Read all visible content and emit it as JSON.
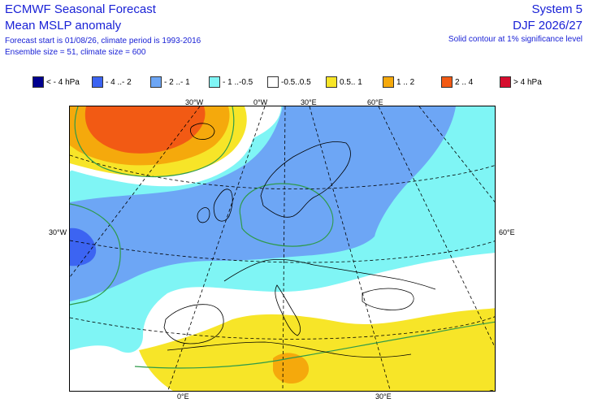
{
  "header": {
    "title": "ECMWF Seasonal Forecast",
    "subtitle": "Mean MSLP anomaly",
    "meta_line1": "Forecast start is 01/08/26, climate period is 1993-2016",
    "meta_line2": "Ensemble size = 51, climate size = 600",
    "system": "System 5",
    "season": "DJF 2026/27",
    "significance": "Solid contour at 1% significance level"
  },
  "legend": [
    {
      "label": "< - 4 hPa",
      "color": "#00008f"
    },
    {
      "label": "- 4 ..- 2",
      "color": "#3c64f2"
    },
    {
      "label": "- 2 ..- 1",
      "color": "#6da6f5"
    },
    {
      "label": "- 1 ..-0.5",
      "color": "#7ff5f5"
    },
    {
      "label": "-0.5..0.5",
      "color": "#ffffff"
    },
    {
      "label": "0.5.. 1",
      "color": "#f7e528"
    },
    {
      "label": "1 .. 2",
      "color": "#f5a90c"
    },
    {
      "label": "2 .. 4",
      "color": "#f25a14"
    },
    {
      "label": "> 4 hPa",
      "color": "#d60d2e"
    }
  ],
  "map": {
    "region": "Europe",
    "projection": "polar stereographic",
    "graticule": "dashed",
    "coastlines": true,
    "contour_color": "#2e9a4a",
    "lon_labels": {
      "top": [
        "30°W",
        "0°W",
        "30°E",
        "60°E"
      ],
      "left": "30°W",
      "right": "60°E",
      "bottom": [
        "0°E",
        "30°E"
      ]
    }
  }
}
